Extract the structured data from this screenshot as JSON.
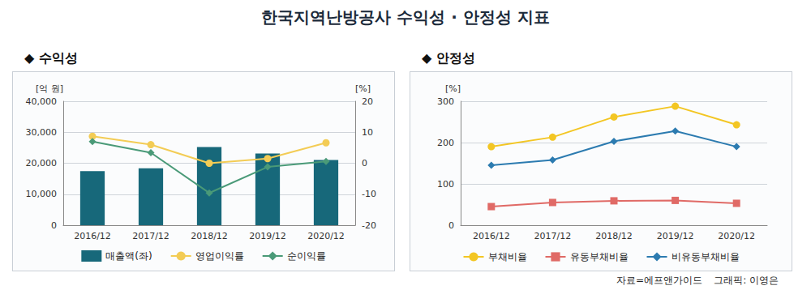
{
  "title": "한국지역난방공사 수익성 · 안정성 지표",
  "source": "자료=에프앤가이드",
  "credit": "그래픽: 이영은",
  "chart_data": [
    {
      "type": "bar",
      "title": "◆ 수익성",
      "categories": [
        "2016/12",
        "2017/12",
        "2018/12",
        "2019/12",
        "2020/12"
      ],
      "ylabel": "[억 원]",
      "y2label": "[%]",
      "ylim": [
        0,
        40000
      ],
      "yticks": [
        0,
        {
          "value": 10000,
          "label": "10,000"
        },
        {
          "value": 20000,
          "label": "20,000"
        },
        {
          "value": 30000,
          "label": "30,000"
        },
        {
          "value": 40000,
          "label": "40,000"
        }
      ],
      "y2lim": [
        -20,
        20
      ],
      "y2ticks": [
        -20,
        -10,
        0,
        10,
        20
      ],
      "grid": true,
      "legend": "bottom",
      "series": [
        {
          "name": "매출액(좌)",
          "type": "bar",
          "color": "#17687a",
          "values": [
            17450,
            18350,
            25250,
            23150,
            21050
          ]
        },
        {
          "name": "영업이익률",
          "type": "line",
          "axis": "y2",
          "color": "#f3cc55",
          "marker": "circle",
          "values": [
            8.7,
            6,
            0,
            1.5,
            6.6
          ]
        },
        {
          "name": "순이익률",
          "type": "line",
          "axis": "y2",
          "color": "#4a9a78",
          "marker": "diamond",
          "values": [
            7,
            3.4,
            -9.6,
            -1.2,
            0.6
          ]
        }
      ]
    },
    {
      "type": "line",
      "title": "◆ 안정성",
      "categories": [
        "2016/12",
        "2017/12",
        "2018/12",
        "2019/12",
        "2020/12"
      ],
      "ylabel": "[%]",
      "ylim": [
        0,
        300
      ],
      "yticks": [
        0,
        100,
        200,
        300
      ],
      "grid": true,
      "legend": "bottom",
      "series": [
        {
          "name": "부채비율",
          "color": "#f3c623",
          "marker": "circle",
          "values": [
            190,
            213,
            262,
            288,
            243
          ]
        },
        {
          "name": "유동부채비율",
          "color": "#e06a66",
          "marker": "square",
          "values": [
            45,
            55,
            59,
            60,
            53
          ]
        },
        {
          "name": "비유동부채비율",
          "color": "#2c7bb0",
          "marker": "diamond",
          "values": [
            145,
            158,
            203,
            228,
            190
          ]
        }
      ]
    }
  ]
}
